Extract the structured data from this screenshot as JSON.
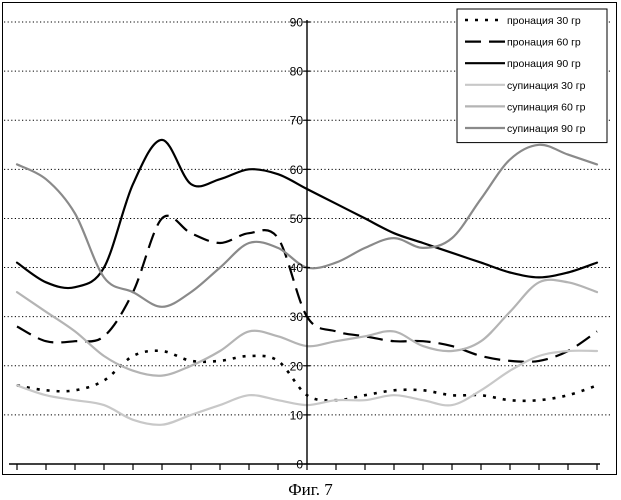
{
  "figure": {
    "caption": "Фиг. 7"
  },
  "chart_data": {
    "type": "line",
    "title": "",
    "xlabel": "",
    "ylabel": "",
    "ylim": [
      0,
      90
    ],
    "yticks": [
      0,
      10,
      20,
      30,
      40,
      50,
      60,
      70,
      80,
      90
    ],
    "yaxis_at_x": 10,
    "xlim": [
      0,
      20
    ],
    "grid": "horizontal-dotted",
    "legend": "top-right",
    "series": [
      {
        "name": "пронация 30 гр",
        "style": "dotted",
        "color": "#000000",
        "x": [
          0,
          1,
          2,
          3,
          4,
          5,
          6,
          7,
          8,
          9,
          10,
          11,
          12,
          13,
          14,
          15,
          16,
          17,
          18,
          19,
          20
        ],
        "y": [
          16,
          15,
          15,
          17,
          22,
          23,
          21,
          21,
          22,
          21,
          14,
          13,
          14,
          15,
          15,
          14,
          14,
          13,
          13,
          14,
          16
        ]
      },
      {
        "name": "пронация 60 гр",
        "style": "dashed",
        "color": "#000000",
        "x": [
          0,
          1,
          2,
          3,
          4,
          5,
          6,
          7,
          8,
          9,
          10,
          11,
          12,
          13,
          14,
          15,
          16,
          17,
          18,
          19,
          20
        ],
        "y": [
          28,
          25,
          25,
          26,
          35,
          50,
          47,
          45,
          47,
          46,
          30,
          27,
          26,
          25,
          25,
          24,
          22,
          21,
          21,
          23,
          27
        ]
      },
      {
        "name": "пронация 90 гр",
        "style": "solid",
        "color": "#000000",
        "x": [
          0,
          1,
          2,
          3,
          4,
          5,
          6,
          7,
          8,
          9,
          10,
          11,
          12,
          13,
          14,
          15,
          16,
          17,
          18,
          19,
          20
        ],
        "y": [
          41,
          37,
          36,
          40,
          57,
          66,
          57,
          58,
          60,
          59,
          56,
          53,
          50,
          47,
          45,
          43,
          41,
          39,
          38,
          39,
          41
        ]
      },
      {
        "name": "супинация 30 гр",
        "style": "solid",
        "color": "#c8c8c8",
        "x": [
          0,
          1,
          2,
          3,
          4,
          5,
          6,
          7,
          8,
          9,
          10,
          11,
          12,
          13,
          14,
          15,
          16,
          17,
          18,
          19,
          20
        ],
        "y": [
          16,
          14,
          13,
          12,
          9,
          8,
          10,
          12,
          14,
          13,
          12,
          13,
          13,
          14,
          13,
          12,
          15,
          19,
          22,
          23,
          23
        ]
      },
      {
        "name": "супинация 60 гр",
        "style": "solid",
        "color": "#b4b4b4",
        "x": [
          0,
          1,
          2,
          3,
          4,
          5,
          6,
          7,
          8,
          9,
          10,
          11,
          12,
          13,
          14,
          15,
          16,
          17,
          18,
          19,
          20
        ],
        "y": [
          35,
          31,
          27,
          22,
          19,
          18,
          20,
          23,
          27,
          26,
          24,
          25,
          26,
          27,
          24,
          23,
          25,
          31,
          37,
          37,
          35
        ]
      },
      {
        "name": "супинация 90 гр",
        "style": "solid",
        "color": "#8a8a8a",
        "x": [
          0,
          1,
          2,
          3,
          4,
          5,
          6,
          7,
          8,
          9,
          10,
          11,
          12,
          13,
          14,
          15,
          16,
          17,
          18,
          19,
          20
        ],
        "y": [
          61,
          58,
          51,
          38,
          35,
          32,
          35,
          40,
          45,
          44,
          40,
          41,
          44,
          46,
          44,
          46,
          54,
          62,
          65,
          63,
          61
        ]
      }
    ]
  }
}
